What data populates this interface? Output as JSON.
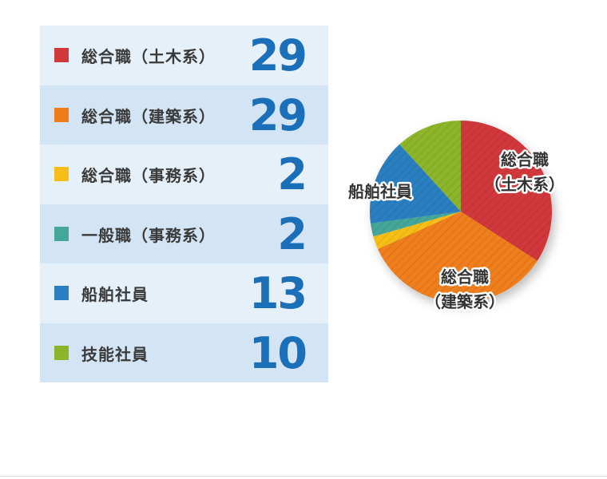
{
  "chart_data": {
    "type": "pie",
    "categories": [
      "総合職（土木系）",
      "総合職（建築系）",
      "総合職（事務系）",
      "一般職（事務系）",
      "船舶社員",
      "技能社員"
    ],
    "values": [
      29,
      29,
      2,
      2,
      13,
      10
    ],
    "colors": [
      "#d1383b",
      "#ef7e1a",
      "#f7be19",
      "#45a799",
      "#2b7fc0",
      "#8db52a"
    ],
    "pie_labels": {
      "doboku_line1": "総合職",
      "doboku_line2": "（土木系）",
      "kenchiku_line1": "総合職",
      "kenchiku_line2": "（建築系）",
      "senpaku": "船舶社員"
    }
  },
  "legend_rows": [
    {
      "label": "総合職（土木系）",
      "value": "29"
    },
    {
      "label": "総合職（建築系）",
      "value": "29"
    },
    {
      "label": "総合職（事務系）",
      "value": "2"
    },
    {
      "label": "一般職（事務系）",
      "value": "2"
    },
    {
      "label": "船舶社員",
      "value": "13"
    },
    {
      "label": "技能社員",
      "value": "10"
    }
  ]
}
